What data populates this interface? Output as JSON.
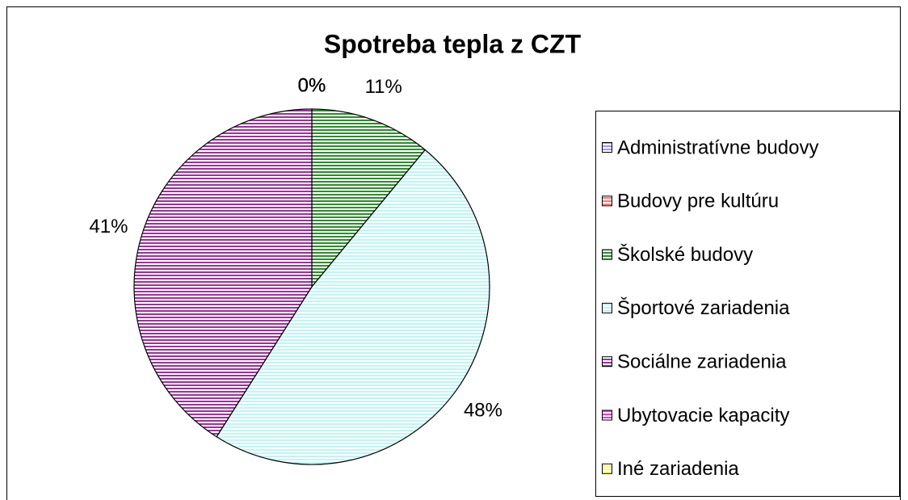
{
  "chart_data": {
    "type": "pie",
    "title": "Spotreba tepla z CZT",
    "categories": [
      "Administratívne budovy",
      "Budovy pre kultúru",
      "Školské budovy",
      "Športové zariadenia",
      "Sociálne zariadenia",
      "Ubytovacie kapacity",
      "Iné zariadenia"
    ],
    "values": [
      0,
      0,
      11,
      48,
      41,
      0,
      0
    ],
    "value_labels": [
      "0%",
      "0%",
      "11%",
      "48%",
      "41%",
      "0%",
      "0%"
    ],
    "colors": [
      "#9999ff",
      "#ff7a7a",
      "#2e8b2e",
      "#bff5f5",
      "#993399",
      "#ff33cc",
      "#ffff66"
    ],
    "legend": "right"
  }
}
